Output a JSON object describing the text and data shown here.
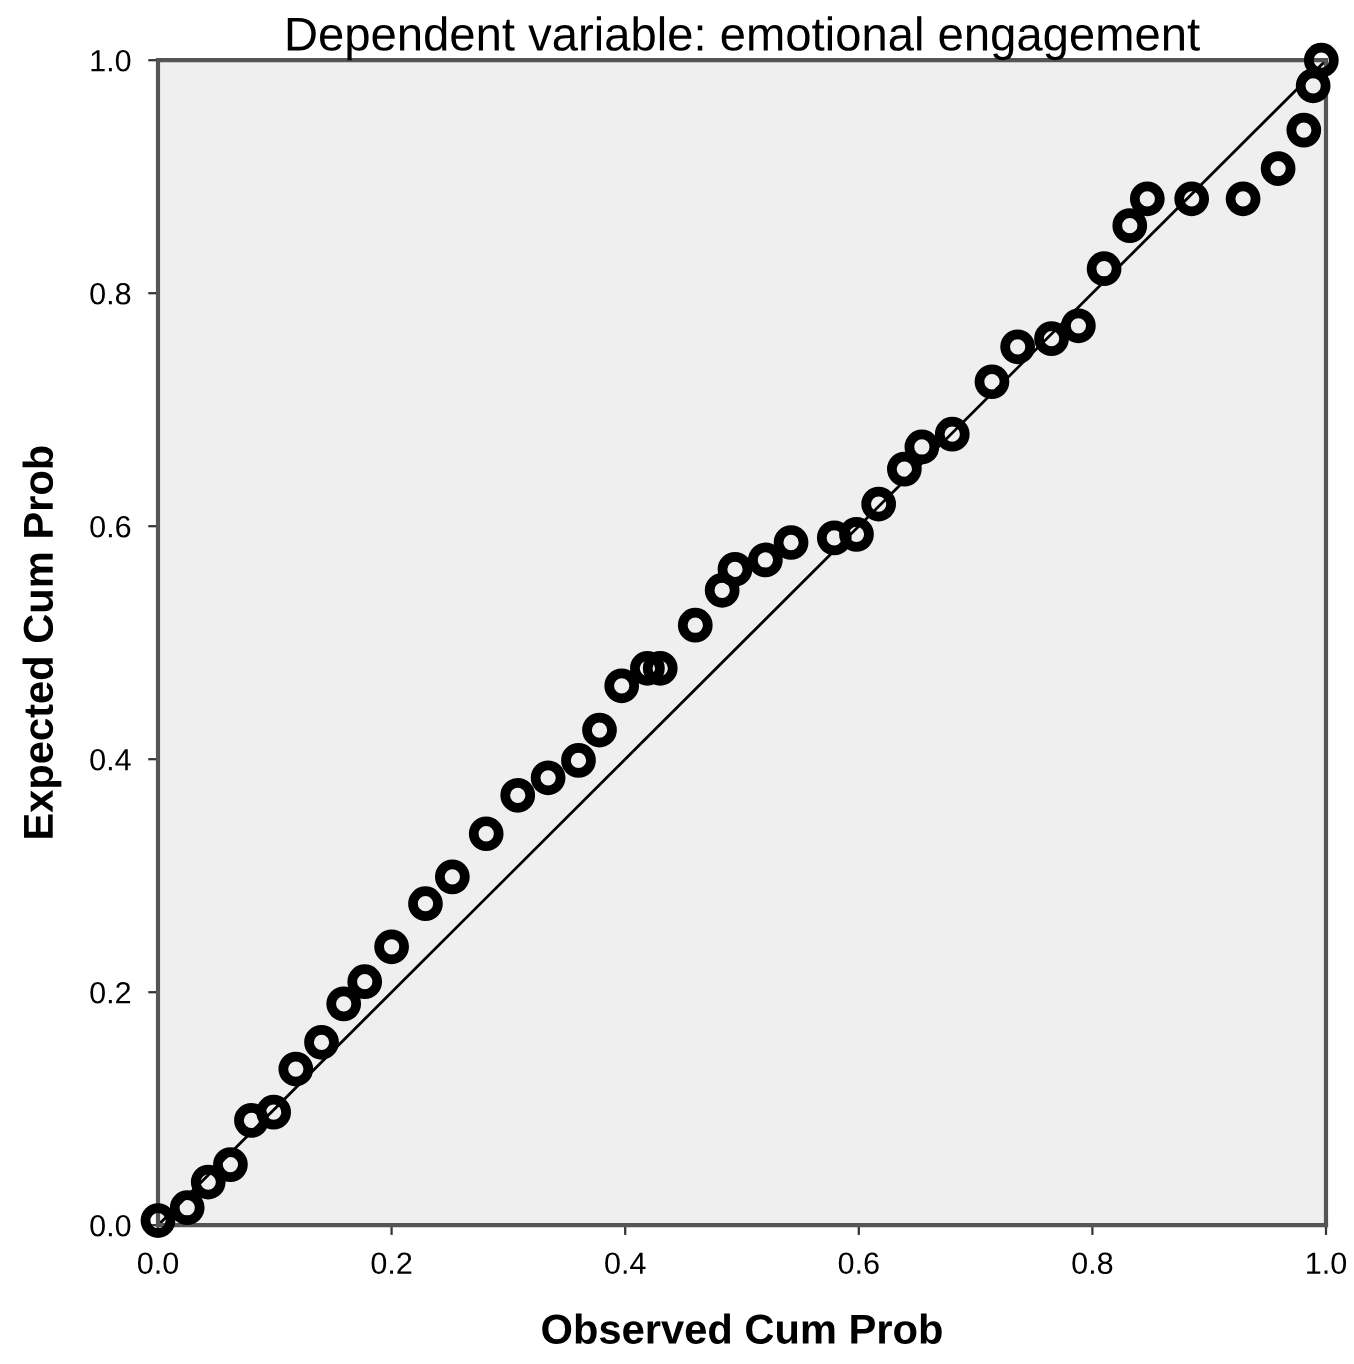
{
  "chart_data": {
    "type": "scatter",
    "title": "Dependent variable: emotional engagement",
    "xlabel": "Observed Cum Prob",
    "ylabel": "Expected Cum Prob",
    "xlim": [
      0,
      1
    ],
    "ylim": [
      0,
      1
    ],
    "xticks": [
      {
        "value": 0,
        "label": "0.0"
      },
      0.2,
      0.4,
      0.6,
      0.8,
      {
        "value": 1,
        "label": "1.0"
      }
    ],
    "yticks": [
      {
        "value": 0,
        "label": "0.0"
      },
      0.2,
      0.4,
      0.6,
      0.8,
      {
        "value": 1,
        "label": "1.0"
      }
    ],
    "grid": false,
    "legend": false,
    "series": [
      {
        "marker": "circle",
        "color": "#000000",
        "x": [
          0,
          0.025,
          0.043,
          0.062,
          0.08,
          0.099,
          0.118,
          0.14,
          0.159,
          0.177,
          0.2,
          0.229,
          0.252,
          0.281,
          0.308,
          0.334,
          0.36,
          0.378,
          0.397,
          0.419,
          0.43,
          0.46,
          0.483,
          0.494,
          0.52,
          0.542,
          0.579,
          0.598,
          0.617,
          0.639,
          0.654,
          0.68,
          0.714,
          0.736,
          0.765,
          0.788,
          0.81,
          0.832,
          0.847,
          0.885,
          0.929,
          0.959,
          0.981,
          0.989,
          0.996
        ],
        "values": [
          0.004,
          0.015,
          0.037,
          0.052,
          0.09,
          0.097,
          0.134,
          0.157,
          0.19,
          0.209,
          0.239,
          0.276,
          0.299,
          0.336,
          0.369,
          0.384,
          0.399,
          0.425,
          0.463,
          0.478,
          0.478,
          0.515,
          0.545,
          0.563,
          0.571,
          0.586,
          0.59,
          0.593,
          0.619,
          0.649,
          0.668,
          0.679,
          0.724,
          0.754,
          0.761,
          0.772,
          0.821,
          0.858,
          0.881,
          0.881,
          0.881,
          0.907,
          0.94,
          0.978,
          1.0
        ]
      },
      {
        "type": "line",
        "marker": "none",
        "color": "#000000",
        "x": [
          0,
          1
        ],
        "values": [
          0,
          1
        ]
      }
    ]
  }
}
